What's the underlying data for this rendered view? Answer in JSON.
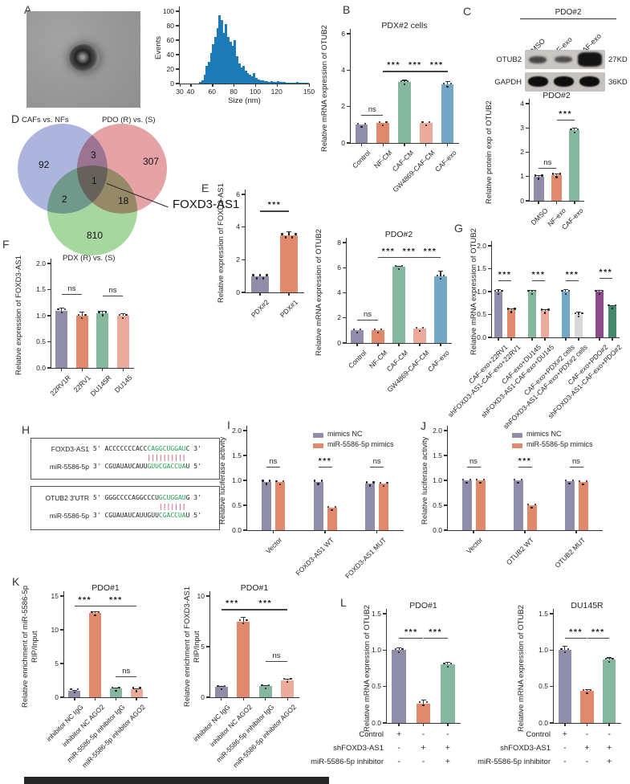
{
  "panels": {
    "a": "A",
    "b": "B",
    "c": "C",
    "d": "D",
    "e": "E",
    "f": "F",
    "g": "G",
    "h": "H",
    "i": "I",
    "j": "J",
    "k": "K",
    "l": "L"
  },
  "venn": {
    "set_a_label": "CAFs vs. NFs",
    "set_b_label": "PDO (R) vs. (S)",
    "set_c_label": "PDX (R) vs. (S)",
    "a_only": "92",
    "b_only": "307",
    "c_only": "810",
    "ab": "3",
    "ac": "2",
    "bc": "18",
    "abc": "1",
    "gene": "FOXD3-AS1",
    "colors": {
      "a": "#7b87cb",
      "b": "#d66a6f",
      "c": "#6fbf63"
    }
  },
  "blot": {
    "header": "PDO#2",
    "lanes": [
      "DMSO",
      "NF-exo",
      "CAF-exo"
    ],
    "rows": [
      {
        "label": "OTUB2",
        "kd": "27KD"
      },
      {
        "label": "GAPDH",
        "kd": "36KD"
      }
    ]
  },
  "hybridization": {
    "box1": {
      "line1_name": "FOXD3-AS1",
      "line1_pre": "5' ACCCCCCCACC",
      "line1_match": "CAGGCUGGAU",
      "line1_post": "C 3'",
      "pipe_offset": 14,
      "pipes": 10,
      "line2_name": "miR-5586-5p",
      "line2_pre": "3' CGUAUAUCAUU",
      "line2_match": "GUUCGACCUA",
      "line2_post": "U 5'"
    },
    "box2": {
      "line1_name": "OTUB2 3'UTR",
      "line1_pre": "5' GGGCCCCAGGCCCU",
      "line1_match": "GCUGGAU",
      "line1_post": "G 3'",
      "pipe_offset": 17,
      "pipes": 7,
      "line2_name": "miR-5586-5p",
      "line2_pre": "3' CGUAUAUCAUUGUU",
      "line2_match": "CGACCUA",
      "line2_post": "U 5'"
    }
  },
  "charts": {
    "hist": {
      "type": "hist",
      "ylabel": "Events",
      "xlabel": "Size (nm)",
      "ymax": 100,
      "yticks": [
        "0",
        "20",
        "40",
        "60",
        "80",
        "100"
      ],
      "xmin": 30,
      "xmax": 150,
      "xticks": [
        30,
        40,
        60,
        80,
        100,
        120,
        150
      ],
      "color": "#1c7ab5",
      "values": [
        0,
        0,
        0,
        0,
        0,
        0,
        0,
        0,
        0,
        2,
        5,
        12,
        25,
        30,
        42,
        55,
        65,
        77,
        95,
        88,
        70,
        82,
        65,
        58,
        52,
        60,
        38,
        28,
        22,
        25,
        18,
        15,
        12,
        10,
        15,
        8,
        6,
        5,
        4,
        3,
        3,
        2,
        3,
        2,
        2,
        3,
        2,
        2,
        2,
        1,
        1,
        1,
        1,
        1,
        2,
        1,
        1,
        1,
        1,
        1
      ]
    },
    "b": {
      "type": "bar",
      "title": "PDX#2 cells",
      "ylabel": "Relative mRNA expression of OTUB2",
      "ymax": 6,
      "yticks": [
        "0",
        "2",
        "4",
        "6"
      ],
      "categories": [
        "Control",
        "NF-CM",
        "CAF-CM",
        "GW4869-CAF-CM",
        "CAF-exo"
      ],
      "values": [
        1.0,
        1.1,
        3.35,
        1.1,
        3.2
      ],
      "err": [
        0,
        0,
        0.12,
        0,
        0.2
      ],
      "colors": [
        "#8f8da7",
        "#e1896c",
        "#85b79e",
        "#eaab9c",
        "#74a7c3"
      ],
      "sig": [
        {
          "a": 0,
          "b": 1,
          "label": "ns",
          "y": 1.55
        },
        {
          "a": 1,
          "b": 2,
          "label": "***",
          "y": 3.95
        },
        {
          "a": 2,
          "b": 3,
          "label": "***",
          "y": 3.95
        },
        {
          "a": 3,
          "b": 4,
          "label": "***",
          "y": 3.95
        }
      ]
    },
    "c": {
      "type": "bar",
      "title": "PDO#2",
      "ylabel": "Relative protein exp of OTUB2",
      "ymax": 4,
      "yticks": [
        "0",
        "1",
        "2",
        "3",
        "4"
      ],
      "categories": [
        "DMSO",
        "NF-exo",
        "CAF-exo"
      ],
      "values": [
        1.0,
        1.07,
        2.9
      ],
      "err": [
        0.05,
        0.07,
        0.1
      ],
      "colors": [
        "#8f8da7",
        "#e1896c",
        "#85b79e"
      ],
      "sig": [
        {
          "a": 0,
          "b": 1,
          "label": "ns",
          "y": 1.35
        },
        {
          "a": 1,
          "b": 2,
          "label": "***",
          "y": 3.35
        }
      ]
    },
    "e1": {
      "type": "bar",
      "ylabel": "Relative expression of FOXD3-AS1",
      "ymax": 6,
      "yticks": [
        "0",
        "2",
        "4",
        "6"
      ],
      "dots": 5,
      "barw": 22,
      "categories": [
        "PDX#2",
        "PDX#1"
      ],
      "values": [
        1.0,
        3.5
      ],
      "err": [
        0,
        0.25
      ],
      "colors": [
        "#8f8da7",
        "#e1896c"
      ],
      "sig": [
        {
          "a": 0,
          "b": 1,
          "label": "***",
          "y": 5.0
        }
      ]
    },
    "e2": {
      "type": "bar",
      "title": "PDO#2",
      "ylabel": "Relative mRNA expression of OTUB2",
      "ymax": 8,
      "yticks": [
        "0",
        "2",
        "4",
        "6",
        "8"
      ],
      "categories": [
        "Control",
        "NF-CM",
        "CAF-CM",
        "GW4869-CAF-CM",
        "CAF-exo"
      ],
      "values": [
        1.0,
        1.0,
        6.05,
        1.15,
        5.3
      ],
      "err": [
        0,
        0,
        0.12,
        0,
        0.45
      ],
      "colors": [
        "#8f8da7",
        "#e1896c",
        "#85b79e",
        "#eaab9c",
        "#74a7c3"
      ],
      "sig": [
        {
          "a": 0,
          "b": 1,
          "label": "ns",
          "y": 1.85
        },
        {
          "a": 1,
          "b": 2,
          "label": "***",
          "y": 6.85
        },
        {
          "a": 2,
          "b": 3,
          "label": "***",
          "y": 6.85
        },
        {
          "a": 3,
          "b": 4,
          "label": "***",
          "y": 6.85
        }
      ]
    },
    "f": {
      "type": "bar",
      "ylabel": "Relative expression of FOXD3-AS1",
      "ymax": 2.0,
      "yticks": [
        "0.0",
        "0.5",
        "1.0",
        "1.5",
        "2.0"
      ],
      "categories": [
        "22RV1R",
        "22RV1",
        "DU145R",
        "DU145"
      ],
      "values": [
        1.1,
        1.0,
        1.05,
        1.0
      ],
      "err": [
        0.06,
        0.08,
        0.04,
        0.05
      ],
      "colors": [
        "#8f8da7",
        "#e1896c",
        "#85b79e",
        "#eaab9c"
      ],
      "sig": [
        {
          "a": 0,
          "b": 1,
          "label": "ns",
          "y": 1.42
        },
        {
          "a": 2,
          "b": 3,
          "label": "ns",
          "y": 1.38
        }
      ]
    },
    "g": {
      "type": "bar",
      "ylabel": "Relative mRNA expression of OTUB2",
      "ymax": 2.0,
      "yticks": [
        "0.0",
        "0.5",
        "1.0",
        "1.5",
        "2.0"
      ],
      "groupEvery": 2,
      "barw": 10,
      "categories": [
        "CAF-exo+22RV1",
        "shFOXD3-AS1-CAF-exo+22RV1",
        "CAF-exo+DU145",
        "shFOXD3-AS1-CAF-exo+DU145",
        "CAF-exo+PDX#2 cells",
        "shFOXD3-AS1-CAF-exo+PDX#2 cells",
        "CAF-exo+PDO#2",
        "shFOXD3-AS1-CAF-exo+PDO#2"
      ],
      "values": [
        1.0,
        0.6,
        1.0,
        0.58,
        1.0,
        0.5,
        1.0,
        0.68
      ],
      "err": [
        0.06,
        0.03,
        0.04,
        0.04,
        0.05,
        0.06,
        0.04,
        0.03
      ],
      "colors": [
        "#8f8da7",
        "#e1896c",
        "#85b79e",
        "#eaab9c",
        "#74a7c3",
        "#d8d8d8",
        "#8c4a87",
        "#46886c"
      ],
      "sig": [
        {
          "a": 0,
          "b": 1,
          "label": "***",
          "y": 1.25
        },
        {
          "a": 2,
          "b": 3,
          "label": "***",
          "y": 1.25
        },
        {
          "a": 4,
          "b": 5,
          "label": "***",
          "y": 1.25
        },
        {
          "a": 6,
          "b": 7,
          "label": "***",
          "y": 1.3
        }
      ]
    },
    "i": {
      "type": "groupbar",
      "ylabel": "Relative luciferase activity",
      "ymax": 2.0,
      "yticks": [
        "0.0",
        "0.5",
        "1.0",
        "1.5",
        "2.0"
      ],
      "barw": 12,
      "categories": [
        "Vector",
        "FOXD3-AS1 WT",
        "FOXD3-AS1 MUT"
      ],
      "series": [
        {
          "name": "mimics NC",
          "color": "#8f8da7",
          "values": [
            0.97,
            0.97,
            0.94
          ]
        },
        {
          "name": "miR-5586-5p mimics",
          "color": "#e1896c",
          "values": [
            0.96,
            0.45,
            0.93
          ]
        }
      ],
      "legend": [
        {
          "label": "mimics NC",
          "color": "#8f8da7"
        },
        {
          "label": "miR-5586-5p mimics",
          "color": "#e1896c"
        }
      ],
      "sig": [
        {
          "a": 0,
          "b": 1,
          "label": "ns",
          "y": 1.28
        },
        {
          "a": 2,
          "b": 3,
          "label": "***",
          "y": 1.28
        },
        {
          "a": 4,
          "b": 5,
          "label": "ns",
          "y": 1.28
        }
      ]
    },
    "j": {
      "type": "groupbar",
      "ylabel": "Relative luciferase activity",
      "ymax": 2.0,
      "yticks": [
        "0.0",
        "0.5",
        "1.0",
        "1.5",
        "2.0"
      ],
      "barw": 12,
      "categories": [
        "Vector",
        "OTUB2 WT",
        "OTUB2 MUT"
      ],
      "series": [
        {
          "name": "mimics NC",
          "color": "#8f8da7",
          "values": [
            1.0,
            1.0,
            0.98
          ]
        },
        {
          "name": "miR-5586-5p mimics",
          "color": "#e1896c",
          "values": [
            1.0,
            0.5,
            0.96
          ]
        }
      ],
      "legend": [
        {
          "label": "mimics NC",
          "color": "#8f8da7"
        },
        {
          "label": "miR-5586-5p mimics",
          "color": "#e1896c"
        }
      ],
      "sig": [
        {
          "a": 0,
          "b": 1,
          "label": "ns",
          "y": 1.28
        },
        {
          "a": 2,
          "b": 3,
          "label": "***",
          "y": 1.28
        },
        {
          "a": 4,
          "b": 5,
          "label": "ns",
          "y": 1.28
        }
      ]
    },
    "k1": {
      "type": "bar",
      "title": "PDO#1",
      "ylabel": "Relative enrichment of miR-5586-5p\nRIP/Input",
      "ymax": 15,
      "yticks": [
        "0",
        "5",
        "10",
        "15"
      ],
      "categories": [
        "inhibitor NC IgG",
        "inhibitor NC AGO2",
        "miR-5586-5p inhibitor IgG",
        "miR-5586-5p inhibitor AGO2"
      ],
      "values": [
        1.0,
        12.5,
        1.3,
        1.2
      ],
      "err": [
        0.1,
        0.25,
        0.1,
        0.1
      ],
      "colors": [
        "#8f8da7",
        "#e1896c",
        "#85b79e",
        "#eaab9c"
      ],
      "sig": [
        {
          "a": 0,
          "b": 1,
          "label": "***",
          "y": 13.6
        },
        {
          "a": 1,
          "b": 3,
          "label": "***",
          "y": 13.6
        },
        {
          "a": 2,
          "b": 3,
          "label": "ns",
          "y": 3.1
        }
      ]
    },
    "k2": {
      "type": "bar",
      "title": "PDO#1",
      "ylabel": "Relative enrichment of FOXD3-AS1\nRIP/Input",
      "ymax": 10,
      "yticks": [
        "0",
        "5",
        "10"
      ],
      "categories": [
        "inhibitor NC IgG",
        "inhibitor NC AGO2",
        "miR-5586-5p inhibitor IgG",
        "miR-5586-5p inhibitor AGO2"
      ],
      "values": [
        1.0,
        7.5,
        1.1,
        1.7
      ],
      "err": [
        0.08,
        0.45,
        0.1,
        0.15
      ],
      "colors": [
        "#8f8da7",
        "#e1896c",
        "#85b79e",
        "#eaab9c"
      ],
      "sig": [
        {
          "a": 0,
          "b": 1,
          "label": "***",
          "y": 8.7
        },
        {
          "a": 1,
          "b": 3,
          "label": "***",
          "y": 8.7
        },
        {
          "a": 2,
          "b": 3,
          "label": "ns",
          "y": 3.6
        }
      ]
    },
    "l1": {
      "type": "bar",
      "title": "PDO#1",
      "ylabel": "Relative mRNA expression of OTUB2",
      "ymax": 1.5,
      "yticks": [
        "0.0",
        "0.5",
        "1.0",
        "1.5"
      ],
      "noxlab": true,
      "values": [
        1.0,
        0.27,
        0.8
      ],
      "err": [
        0.04,
        0.05,
        0.04
      ],
      "colors": [
        "#8f8da7",
        "#e1896c",
        "#85b79e"
      ],
      "sig": [
        {
          "a": 0,
          "b": 1,
          "label": "***",
          "y": 1.17
        },
        {
          "a": 1,
          "b": 2,
          "label": "***",
          "y": 1.17
        }
      ],
      "matrix": [
        {
          "label": "Control",
          "vals": [
            "+",
            "-",
            "-"
          ]
        },
        {
          "label": "shFOXD3-AS1",
          "vals": [
            "-",
            "+",
            "+"
          ]
        },
        {
          "label": "miR-5586-5p inhibitor",
          "vals": [
            "-",
            "-",
            "+"
          ]
        }
      ]
    },
    "l2": {
      "type": "bar",
      "title": "DU145R",
      "ylabel": "Relative mRNA expression of OTUB2",
      "ymax": 1.5,
      "yticks": [
        "0.0",
        "0.5",
        "1.0",
        "1.5"
      ],
      "noxlab": true,
      "values": [
        1.0,
        0.44,
        0.87
      ],
      "err": [
        0.06,
        0.02,
        0.03
      ],
      "colors": [
        "#8f8da7",
        "#e1896c",
        "#85b79e"
      ],
      "sig": [
        {
          "a": 0,
          "b": 1,
          "label": "***",
          "y": 1.17
        },
        {
          "a": 1,
          "b": 2,
          "label": "***",
          "y": 1.17
        }
      ],
      "matrix": [
        {
          "label": "Control",
          "vals": [
            "+",
            "-",
            "-"
          ]
        },
        {
          "label": "shFOXD3-AS1",
          "vals": [
            "-",
            "+",
            "+"
          ]
        },
        {
          "label": "miR-5586-5p inhibitor",
          "vals": [
            "-",
            "-",
            "+"
          ]
        }
      ]
    }
  }
}
